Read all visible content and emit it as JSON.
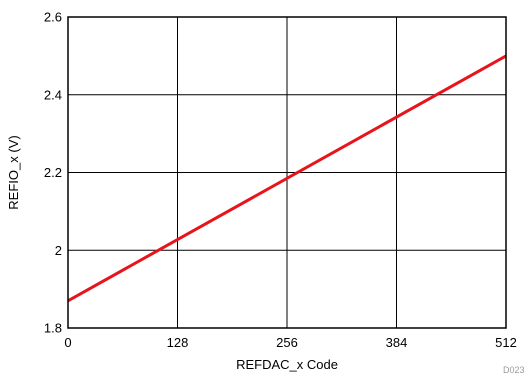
{
  "chart_data": {
    "type": "line",
    "title": "",
    "xlabel": "REFDAC_x Code",
    "ylabel": "REFIO_x (V)",
    "xlim": [
      0,
      512
    ],
    "ylim": [
      1.8,
      2.6
    ],
    "xticks": [
      0,
      128,
      256,
      384,
      512
    ],
    "yticks": [
      1.8,
      2.0,
      2.2,
      2.4,
      2.6
    ],
    "xtick_labels": [
      "0",
      "128",
      "256",
      "384",
      "512"
    ],
    "ytick_labels": [
      "1.8",
      "2",
      "2.2",
      "2.4",
      "2.6"
    ],
    "grid": true,
    "series": [
      {
        "x": [
          0,
          512
        ],
        "y": [
          1.87,
          2.5
        ],
        "color": "#e8141b"
      }
    ],
    "figure_code": "D023"
  }
}
